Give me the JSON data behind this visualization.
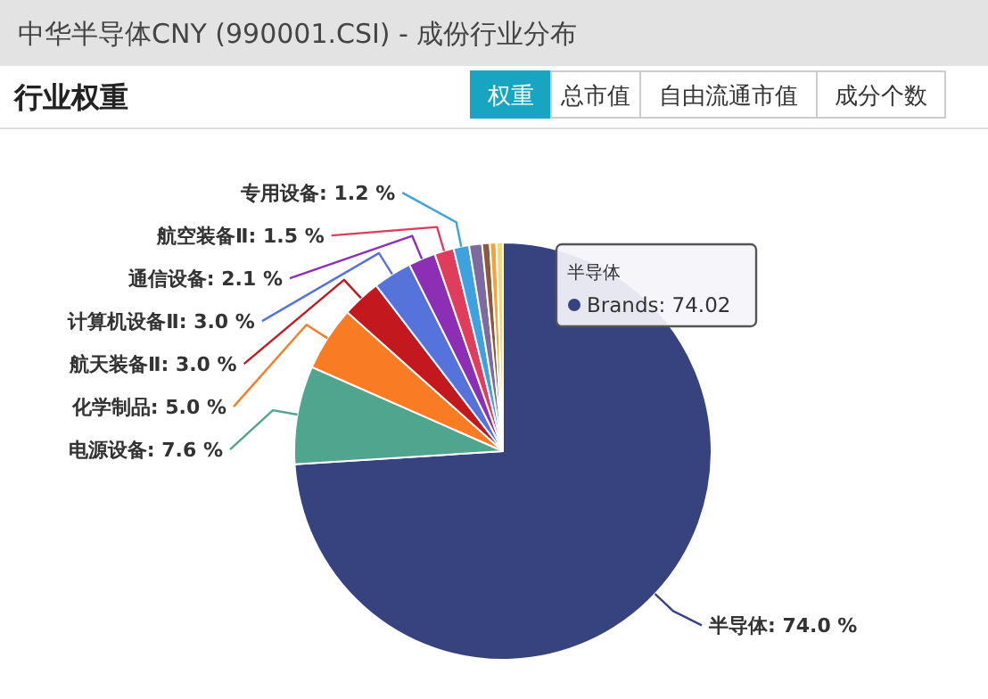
{
  "chart_data": {
    "type": "pie",
    "title": "中华半导体CNY (990001.CSI) - 成份行业分布",
    "subtitle": "行业权重",
    "annotations": [
      "权重",
      "总市值",
      "自由流通市值",
      "成分个数",
      "半导体",
      "Brands: 74.02"
    ],
    "categories": [
      "半导体",
      "电源设备",
      "化学制品",
      "航天装备Ⅱ",
      "计算机设备Ⅱ",
      "通信设备",
      "航空装备Ⅱ",
      "专用设备",
      null,
      null,
      null,
      null
    ],
    "values": [
      74.0,
      7.6,
      5.0,
      3.0,
      3.0,
      2.1,
      1.5,
      1.2,
      1.0,
      0.6,
      0.5,
      0.5
    ],
    "colors": [
      "#36437f",
      "#4fa58d",
      "#f97c24",
      "#c3181d",
      "#5673dc",
      "#8d2fb5",
      "#e03c5c",
      "#3fa1dd",
      "#7d6b9f",
      "#8b5a3c",
      "#f3a33a",
      "#f4d67c"
    ],
    "value_labels": [
      ": 74.0 %",
      ": 7.6 %",
      ": 5.0 %",
      ": 3.0 %",
      ": 3.0 %",
      ": 2.1 %",
      ": 1.5 %",
      ": 1.2 %",
      null,
      null,
      null,
      null
    ]
  }
}
